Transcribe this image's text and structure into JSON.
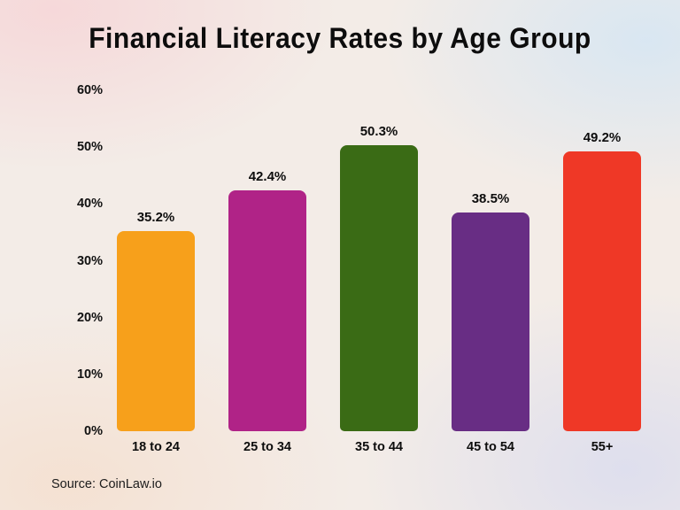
{
  "title": "Financial Literacy Rates by Age Group",
  "source": "Source: CoinLaw.io",
  "chart_data": {
    "type": "bar",
    "title": "Financial Literacy Rates by Age Group",
    "categories": [
      "18 to 24",
      "25 to 34",
      "35 to 44",
      "45 to 54",
      "55+"
    ],
    "values": [
      35.2,
      42.4,
      50.3,
      38.5,
      49.2
    ],
    "value_labels": [
      "35.2%",
      "42.4%",
      "50.3%",
      "38.5%",
      "49.2%"
    ],
    "bar_colors": [
      "#F7A01B",
      "#B02387",
      "#3A6B15",
      "#682D84",
      "#EF3826"
    ],
    "xlabel": "",
    "ylabel": "",
    "ylim": [
      0,
      60
    ],
    "ytick_values": [
      0,
      10,
      20,
      30,
      40,
      50,
      60
    ],
    "ytick_labels": [
      "0%",
      "10%",
      "20%",
      "30%",
      "40%",
      "50%",
      "60%"
    ],
    "grid": false,
    "legend": false,
    "source_note": "Source: CoinLaw.io"
  }
}
